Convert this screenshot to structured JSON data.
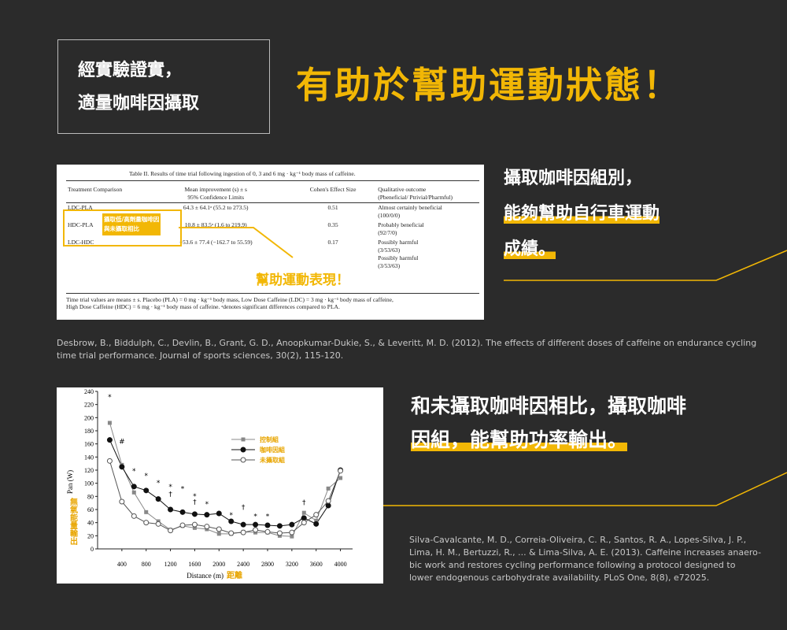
{
  "header": {
    "box_lines": [
      "經實驗證實，",
      "適量咖啡因攝取"
    ],
    "title": "有助於幫助運動狀態！"
  },
  "table": {
    "caption": "Table II. Results of time trial following ingestion of 0, 3 and 6 mg · kg⁻¹ body mass of caffeine.",
    "columns": [
      [
        "Treatment Comparison"
      ],
      [
        "Mean improvement (s) ± s",
        "95% Confidence Limits"
      ],
      [
        "Cohen's Effect Size"
      ],
      [
        "Qualitative outcome",
        "(Pbeneficial/ Ptrivial/Pharmful)"
      ]
    ],
    "rows": [
      [
        [
          "LDC-PLA"
        ],
        [
          "64.3 ± 64.1ᵃ (55.2 to 273.5)"
        ],
        [
          "0.51"
        ],
        [
          "Almost certainly beneficial",
          "(100/0/0)"
        ]
      ],
      [
        [
          "HDC-PLA"
        ],
        [
          "10.8 ± 83.5ᵃ (1.6 to 219.9)"
        ],
        [
          "0.35"
        ],
        [
          "Probably beneficial",
          "(92/7/0)"
        ]
      ],
      [
        [
          "LDC-HDC"
        ],
        [
          "−53.6 ± 77.4 (−162.7 to 55.59)"
        ],
        [
          "0.17"
        ],
        [
          "Possibly harmful",
          "(3/53/63)",
          "Possibly harmful",
          "(3/53/63)"
        ]
      ]
    ],
    "footnote": [
      "Time trial values are means ± s. Placebo (PLA) = 0 mg · kg⁻¹ body mass, Low Dose Caffeine (LDC) = 3 mg · kg⁻¹ body mass of caffeine,",
      "High Dose Caffeine (HDC) = 6 mg · kg⁻¹ body mass of caffeine. ᵃdenotes significant differences compared to PLA."
    ],
    "highlight_label": [
      "攝取低/高劑量咖啡因",
      "與未攝取相比"
    ],
    "callout": "幫助運動表現！"
  },
  "citation1": [
    "Desbrow, B., Biddulph, C., Devlin, B., Grant, G. D., Anoopkumar-Dukie, S., & Leveritt, M. D. (2012). The effects of different doses of caffeine on endurance cycling",
    "time trial performance. Journal of sports sciences, 30(2), 115-120."
  ],
  "note1": [
    "攝取咖啡因組別，",
    "能夠幫助自行車運動",
    "成績。"
  ],
  "note2": [
    "和未攝取咖啡因相比，攝取咖啡",
    "因組，能幫助功率輸出。"
  ],
  "citation2": [
    "Silva-Cavalcante, M. D., Correia-Oliveira, C. R., Santos, R. A., Lopes-Silva, J. P.,",
    "Lima, H. M., Bertuzzi, R., ... & Lima-Silva, A. E. (2013). Caffeine increases anaero-",
    "bic work and restores cycling performance following a protocol designed to",
    "lower endogenous carbohydrate availability. PLoS One, 8(8), e72025."
  ],
  "chart_data": {
    "type": "line",
    "x_label": "Distance (m)",
    "x_label_zh": "距離",
    "y_label": "Pan (W)",
    "y_label_zh": "無氧能量輸出",
    "x": [
      200,
      400,
      600,
      800,
      1000,
      1200,
      1400,
      1600,
      1800,
      2000,
      2200,
      2400,
      2600,
      2800,
      3000,
      3200,
      3400,
      3600,
      3800,
      4000
    ],
    "series": [
      {
        "name": "控制組",
        "color": "#888888",
        "marker": "square",
        "values": [
          192,
          128,
          86,
          56,
          42,
          29,
          35,
          32,
          30,
          23,
          23,
          26,
          25,
          25,
          20,
          19,
          55,
          43,
          92,
          108
        ]
      },
      {
        "name": "咖啡因組",
        "color": "#111111",
        "marker": "filled-circle",
        "values": [
          166,
          125,
          95,
          89,
          76,
          60,
          56,
          53,
          52,
          54,
          42,
          37,
          37,
          36,
          35,
          37,
          47,
          38,
          66,
          120
        ]
      },
      {
        "name": "未攝取組",
        "color": "#555555",
        "marker": "open-circle",
        "values": [
          134,
          72,
          50,
          40,
          38,
          28,
          36,
          37,
          34,
          30,
          24,
          25,
          29,
          26,
          24,
          25,
          40,
          52,
          73,
          119
        ]
      }
    ],
    "xlim": [
      0,
      4200
    ],
    "xticks": [
      400,
      800,
      1200,
      1600,
      2000,
      2400,
      2800,
      3200,
      3600,
      4000
    ],
    "ylim": [
      0,
      240
    ],
    "yticks": [
      0,
      20,
      40,
      60,
      80,
      100,
      120,
      140,
      160,
      180,
      200,
      220,
      240
    ],
    "annotations": [
      {
        "text": "*",
        "x": 200,
        "y": 228
      },
      {
        "text": "#",
        "x": 400,
        "y": 160
      },
      {
        "text": "*",
        "x": 600,
        "y": 115
      },
      {
        "text": "*",
        "x": 800,
        "y": 108
      },
      {
        "text": "*",
        "x": 1000,
        "y": 97
      },
      {
        "text": "*",
        "x": 1200,
        "y": 91
      },
      {
        "text": "†",
        "x": 1200,
        "y": 80
      },
      {
        "text": "*",
        "x": 1400,
        "y": 88
      },
      {
        "text": "*",
        "x": 1600,
        "y": 77
      },
      {
        "text": "†",
        "x": 1600,
        "y": 68
      },
      {
        "text": "*",
        "x": 1800,
        "y": 65
      },
      {
        "text": "*",
        "x": 2200,
        "y": 48
      },
      {
        "text": "†",
        "x": 2400,
        "y": 60
      },
      {
        "text": "*",
        "x": 2600,
        "y": 46
      },
      {
        "text": "*",
        "x": 2800,
        "y": 46
      },
      {
        "text": "†",
        "x": 3400,
        "y": 67
      }
    ]
  }
}
